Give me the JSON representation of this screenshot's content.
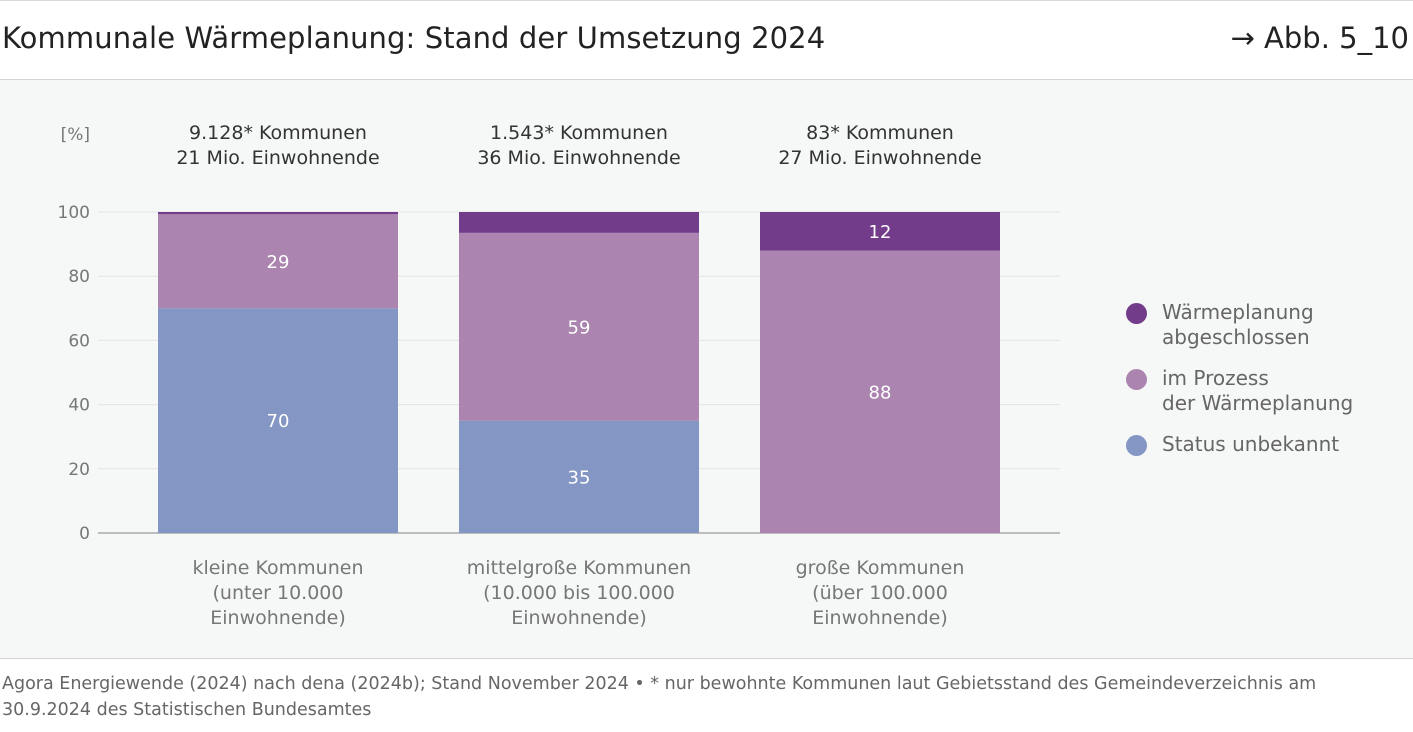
{
  "header": {
    "title": "Kommunale Wärmeplanung: Stand der Umsetzung 2024",
    "figure_ref": "→ Abb. 5_10"
  },
  "colors": {
    "completed": "#733c8b",
    "in_process": "#ab85b0",
    "unknown": "#8496c3"
  },
  "chart_data": {
    "type": "bar",
    "stacked": true,
    "ylabel": "[%]",
    "ylim": [
      0,
      100
    ],
    "yticks": [
      0,
      20,
      40,
      60,
      80,
      100
    ],
    "grid": true,
    "legend_position": "right",
    "categories": [
      {
        "header": [
          "9.128* Kommunen",
          "21 Mio. Einwohnende"
        ],
        "label": [
          "kleine Kommunen",
          "(unter 10.000",
          "Einwohnende)"
        ]
      },
      {
        "header": [
          "1.543* Kommunen",
          "36 Mio. Einwohnende"
        ],
        "label": [
          "mittelgroße Kommunen",
          "(10.000 bis 100.000",
          "Einwohnende)"
        ]
      },
      {
        "header": [
          "83* Kommunen",
          "27 Mio. Einwohnende"
        ],
        "label": [
          "große Kommunen",
          "(über 100.000",
          "Einwohnende)"
        ]
      }
    ],
    "series": [
      {
        "name": "Status unbekannt",
        "color": "#8496c3",
        "values": [
          70,
          35,
          0
        ],
        "labels": [
          "70",
          "35",
          ""
        ]
      },
      {
        "name": "im Prozess der Wärmeplanung",
        "color": "#ab85b0",
        "values": [
          29.3,
          58.5,
          88
        ],
        "labels": [
          "29",
          "59",
          "88"
        ]
      },
      {
        "name": "Wärmeplanung abgeschlossen",
        "color": "#733c8b",
        "values": [
          0.7,
          6.5,
          12
        ],
        "labels": [
          "",
          "",
          "12"
        ]
      }
    ]
  },
  "legend": [
    {
      "label": "Wärmeplanung\nabgeschlossen",
      "color": "#733c8b"
    },
    {
      "label": "im Prozess\nder Wärmeplanung",
      "color": "#ab85b0"
    },
    {
      "label": "Status unbekannt",
      "color": "#8496c3"
    }
  ],
  "source": "Agora Energiewende (2024) nach dena (2024b); Stand November 2024 • * nur bewohnte Kommunen laut Gebietsstand des Gemeindeverzeichnis am 30.9.2024 des Statistischen Bundesamtes"
}
